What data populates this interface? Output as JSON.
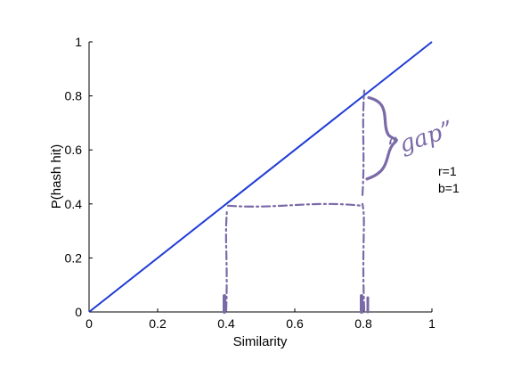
{
  "chart_data": {
    "type": "line",
    "xlabel": "Similarity",
    "ylabel": "P(hash hit)",
    "xlim": [
      0,
      1
    ],
    "ylim": [
      0,
      1
    ],
    "x_ticks": [
      "0",
      "0.2",
      "0.4",
      "0.6",
      "0.8",
      "1"
    ],
    "y_ticks": [
      "0",
      "0.2",
      "0.4",
      "0.6",
      "0.8",
      "1"
    ],
    "grid": false,
    "series": [
      {
        "x": [
          0,
          1
        ],
        "y": [
          0,
          1
        ],
        "color": "#1f3bd6"
      }
    ],
    "parameters": [
      "r=1",
      "b=1"
    ],
    "annotation": {
      "text": "“gap”",
      "color": "#7a6aa8",
      "x_markers": [
        0.4,
        0.8
      ]
    }
  }
}
